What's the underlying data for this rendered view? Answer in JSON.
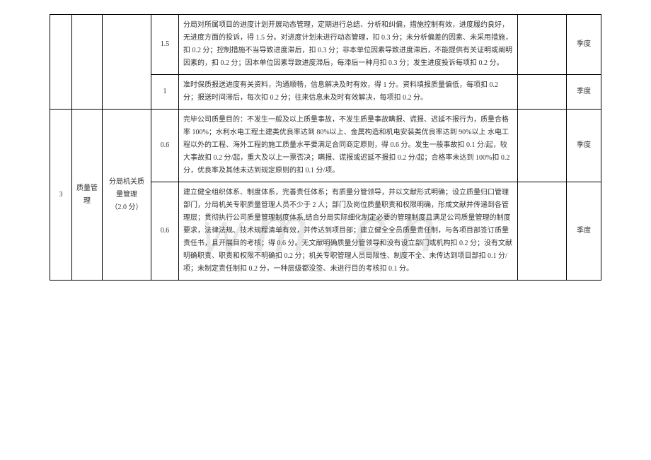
{
  "watermark": "m.cn",
  "watermark_prefix": "W",
  "rows": [
    {
      "score": "1.5",
      "desc": "分局对所属项目的进度计划开展动态管理，定期进行总结、分析和纠偏，措施控制有效，进度履约良好，无进度方面的投诉，得 1.5 分。对进度计划未进行动态管理，扣 0.3 分；未分析偏差的因素、未采用措施，扣 0.2 分；控制措施不当导致进度滞后，扣 0.3 分；非本单位因素导致进度滞后，不能提供有关证明或阐明因素的，扣 0.2 分；因本单位因素导致进度滞后，每滞后一种月扣 0.3 分；发生进度投诉每项扣 0.2 分。",
      "period": "季度"
    },
    {
      "score": "1",
      "desc": "准时保质报送进度有关资料，沟通顺畅，信息解决及时有效，得 1 分。资料填报质量偏低，每项扣 0.2 分；报送时间滞后，每次扣 0.2 分；往来信息未及时有效解决，每项扣 0.2 分。",
      "period": "季度"
    },
    {
      "score": "0.6",
      "desc": "完毕公司质量目的：不发生一般及以上质量事故，不发生质量事故瞒报、谎报、迟延不报行为，质量合格率 100%；水利水电工程土建类优良率达到 80%以上、金属构造和机电安装类优良率达到 90%以上 水电工程以外的工程、海外工程的施工质量水平要满足合同商定原则，得 0.6 分。发生一般事故扣 0.1 分/起，较大事故扣 0.2 分/起，重大及以上一票否决；瞒报、谎报或迟延不报扣 0.2 分/起；合格率未达到 100%扣 0.2 分，优良率及其他未达到规定原则的扣 0.1 分/项。",
      "period": "季度"
    },
    {
      "score": "0.6",
      "desc": "建立健全组织体系、制度体系，完善责任体系；有质量分管领导，并以文献形式明确；设立质量归口管理部门，分局机关专职质量管理人员不少于 2 人；部门及岗位质量职责和权限明确，形成文献并传递到各管理层；贯彻执行公司质量管理制度体系,结合分局实际细化制定必要的管理制度且满足公司质量管理的制度要求，法律法规、技术规程清单有效，并传达到项目部；建立健全全员质量责任制，与各项目部签订质量责任书，且开展目的考核；得 0.6 分。无文献明确质量分管领导和没有设立部门或机构扣 0.2 分；没有文献明确职责、职责和权限不明确扣 0.2 分；机关专职管理人员局限性、制度不全、未传达到项目部扣 0.1 分/项；未制定责任制扣 0.2 分，一种层级都没签、未进行目的考核扣 0.1 分。",
      "period": "季度"
    }
  ],
  "group": {
    "index": "3",
    "category": "质量管理",
    "subcat_line1": "分局机关质",
    "subcat_line2": "量管理",
    "subcat_line3": "（2.0 分）"
  }
}
